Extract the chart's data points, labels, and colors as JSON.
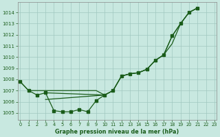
{
  "xlabel": "Graphe pression niveau de la mer (hPa)",
  "bg_color": "#c8e8e0",
  "grid_color": "#a0c8c0",
  "line_color": "#1a5c1a",
  "ylim": [
    1004.4,
    1014.9
  ],
  "xlim": [
    -0.3,
    23.3
  ],
  "yticks": [
    1005,
    1006,
    1007,
    1008,
    1009,
    1010,
    1011,
    1012,
    1013,
    1014
  ],
  "xticks": [
    0,
    1,
    2,
    3,
    4,
    5,
    6,
    7,
    8,
    9,
    10,
    11,
    12,
    13,
    14,
    15,
    16,
    17,
    18,
    19,
    20,
    21,
    22,
    23
  ],
  "line_main_x": [
    0,
    1,
    2,
    3,
    4,
    5,
    6,
    7,
    8,
    9,
    10,
    11,
    12,
    13,
    14,
    15,
    16,
    17,
    18,
    19,
    20,
    21
  ],
  "line_main_y": [
    1007.8,
    1007.0,
    1006.6,
    1006.8,
    1005.2,
    1005.1,
    1005.1,
    1005.3,
    1005.1,
    1006.1,
    1006.6,
    1007.0,
    1008.3,
    1008.5,
    1008.6,
    1008.9,
    1009.7,
    1010.2,
    1011.9,
    1013.0,
    1014.0,
    1014.4
  ],
  "line_flat_x": [
    0,
    1,
    2,
    3,
    4,
    5,
    6,
    7,
    8,
    9,
    10
  ],
  "line_flat_y": [
    1007.8,
    1007.0,
    1007.0,
    1007.0,
    1007.0,
    1007.0,
    1007.0,
    1007.0,
    1007.0,
    1007.0,
    1006.6
  ],
  "line_diag1_x": [
    3,
    10,
    11,
    12,
    13,
    14,
    15,
    16,
    17,
    18,
    19,
    20,
    21
  ],
  "line_diag1_y": [
    1006.8,
    1006.6,
    1007.0,
    1008.3,
    1008.5,
    1008.6,
    1008.9,
    1009.7,
    1010.2,
    1011.2,
    1013.0,
    1014.0,
    1014.4
  ],
  "line_diag2_x": [
    3,
    10,
    11,
    12,
    13,
    14,
    15,
    16,
    17,
    18,
    19,
    20,
    21
  ],
  "line_diag2_y": [
    1006.2,
    1006.6,
    1007.0,
    1008.3,
    1008.5,
    1008.6,
    1008.9,
    1009.7,
    1010.2,
    1011.9,
    1013.0,
    1014.0,
    1014.4
  ],
  "markers_x": [
    0,
    1,
    2,
    3,
    4,
    5,
    6,
    7,
    8,
    9,
    10,
    11,
    12,
    13,
    14,
    15,
    16,
    17,
    18,
    19,
    20,
    21
  ],
  "markers_y": [
    1007.8,
    1007.0,
    1006.6,
    1006.8,
    1005.2,
    1005.1,
    1005.1,
    1005.3,
    1005.1,
    1006.1,
    1006.6,
    1007.0,
    1008.3,
    1008.5,
    1008.6,
    1008.9,
    1009.7,
    1010.2,
    1011.9,
    1013.0,
    1014.0,
    1014.4
  ]
}
